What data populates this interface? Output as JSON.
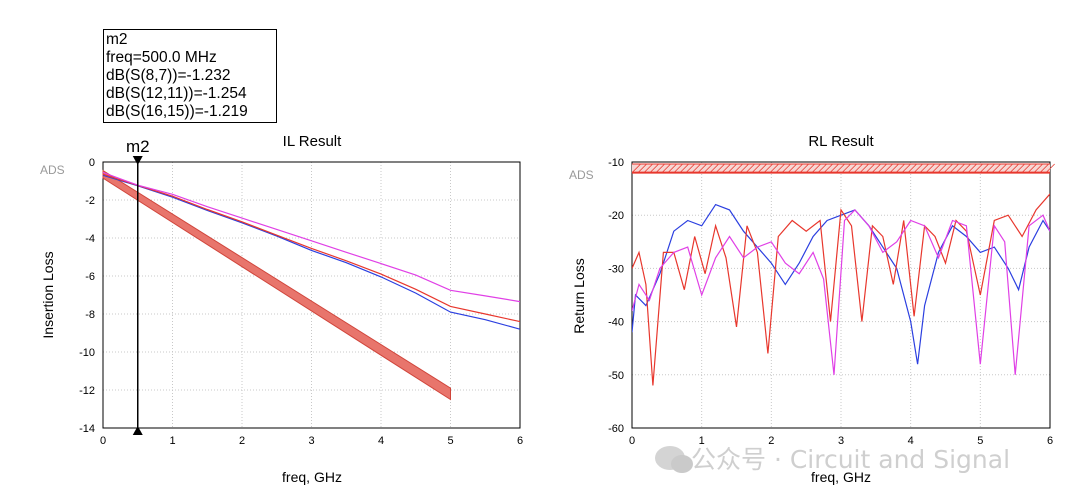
{
  "marker": {
    "name": "m2",
    "lines": [
      "m2",
      "freq=500.0 MHz",
      "dB(S(8,7))=-1.232",
      "dB(S(12,11))=-1.254",
      "dB(S(16,15))=-1.219"
    ]
  },
  "watermark": "公众号 · Circuit and Signal",
  "chart_data": [
    {
      "type": "line",
      "title": "IL Result",
      "corner_label": "ADS",
      "xlabel": "freq, GHz",
      "ylabel": "Insertion Loss",
      "xlim": [
        0,
        6
      ],
      "ylim": [
        -14,
        0
      ],
      "xticks": [
        "0",
        "1",
        "2",
        "3",
        "4",
        "5",
        "6"
      ],
      "yticks": [
        "0",
        "-2",
        "-4",
        "-6",
        "-8",
        "-10",
        "-12",
        "-14"
      ],
      "grid": true,
      "marker": {
        "label": "m2",
        "x": 0.5
      },
      "limit_band": {
        "x": [
          0.0,
          5.0
        ],
        "upper": [
          -0.45,
          -11.9
        ],
        "lower": [
          -0.85,
          -12.5
        ],
        "color": "#e8756c"
      },
      "series": [
        {
          "color": "#2b3fe0",
          "x": [
            0,
            0.5,
            1,
            1.5,
            2,
            2.5,
            3,
            3.5,
            4,
            4.5,
            5,
            5.5,
            6
          ],
          "y": [
            -0.7,
            -1.25,
            -1.85,
            -2.55,
            -3.2,
            -3.9,
            -4.65,
            -5.3,
            -6.05,
            -6.9,
            -7.9,
            -8.3,
            -8.8
          ]
        },
        {
          "color": "#e8372d",
          "x": [
            0,
            0.5,
            1,
            1.5,
            2,
            2.5,
            3,
            3.5,
            4,
            4.5,
            5,
            5.5,
            6
          ],
          "y": [
            -0.65,
            -1.23,
            -1.8,
            -2.5,
            -3.15,
            -3.85,
            -4.55,
            -5.2,
            -5.9,
            -6.7,
            -7.6,
            -8.0,
            -8.4
          ]
        },
        {
          "color": "#e040e6",
          "x": [
            0,
            0.5,
            1,
            1.5,
            2,
            2.5,
            3,
            3.5,
            4,
            4.5,
            5,
            5.5,
            6
          ],
          "y": [
            -0.55,
            -1.22,
            -1.7,
            -2.35,
            -2.95,
            -3.55,
            -4.15,
            -4.75,
            -5.35,
            -5.95,
            -6.75,
            -7.05,
            -7.35
          ]
        }
      ]
    },
    {
      "type": "line",
      "title": "RL Result",
      "corner_label": "ADS",
      "xlabel": "freq, GHz",
      "ylabel": "Return Loss",
      "xlim": [
        0,
        6
      ],
      "ylim": [
        -60,
        -10
      ],
      "xticks": [
        "0",
        "1",
        "2",
        "3",
        "4",
        "5",
        "6"
      ],
      "yticks": [
        "-10",
        "-20",
        "-30",
        "-40",
        "-50",
        "-60"
      ],
      "grid": true,
      "limit_line": {
        "y": -12,
        "x": [
          0,
          6
        ],
        "color": "#e8372d"
      },
      "series": [
        {
          "color": "#2b3fe0",
          "x": [
            0,
            0.05,
            0.2,
            0.4,
            0.6,
            0.8,
            1.0,
            1.2,
            1.4,
            1.6,
            1.8,
            2.0,
            2.2,
            2.4,
            2.6,
            2.8,
            3.0,
            3.2,
            3.4,
            3.6,
            3.8,
            4.0,
            4.1,
            4.2,
            4.4,
            4.6,
            4.8,
            5.0,
            5.2,
            5.4,
            5.55,
            5.7,
            5.9,
            6.0
          ],
          "y": [
            -42,
            -35,
            -37,
            -31,
            -23,
            -21,
            -22,
            -18,
            -19,
            -23,
            -26,
            -29,
            -33,
            -29,
            -24,
            -21,
            -20,
            -19,
            -22,
            -26,
            -30,
            -40,
            -48,
            -37,
            -27,
            -22,
            -24,
            -27,
            -26,
            -30,
            -34,
            -26,
            -21,
            -23
          ]
        },
        {
          "color": "#e8372d",
          "x": [
            0,
            0.1,
            0.2,
            0.3,
            0.45,
            0.6,
            0.75,
            0.9,
            1.05,
            1.2,
            1.35,
            1.5,
            1.65,
            1.8,
            1.95,
            2.1,
            2.3,
            2.5,
            2.7,
            2.85,
            3.0,
            3.15,
            3.3,
            3.45,
            3.6,
            3.75,
            3.9,
            4.05,
            4.2,
            4.35,
            4.5,
            4.65,
            4.8,
            5.0,
            5.2,
            5.4,
            5.6,
            5.8,
            6.0
          ],
          "y": [
            -30,
            -27,
            -33,
            -52,
            -27,
            -27,
            -34,
            -24,
            -31,
            -22,
            -28,
            -41,
            -22,
            -27,
            -46,
            -24,
            -21,
            -23,
            -21,
            -40,
            -19,
            -22,
            -40,
            -22,
            -24,
            -33,
            -21,
            -39,
            -22,
            -24,
            -29,
            -21,
            -23,
            -35,
            -21,
            -20,
            -24,
            -19,
            -16
          ]
        },
        {
          "color": "#e040e6",
          "x": [
            0,
            0.1,
            0.25,
            0.4,
            0.6,
            0.8,
            1.0,
            1.2,
            1.4,
            1.6,
            1.8,
            2.0,
            2.2,
            2.4,
            2.6,
            2.75,
            2.9,
            3.05,
            3.2,
            3.4,
            3.6,
            3.8,
            4.0,
            4.2,
            4.4,
            4.6,
            4.8,
            5.0,
            5.2,
            5.35,
            5.5,
            5.7,
            5.9,
            6.0
          ],
          "y": [
            -38,
            -33,
            -36,
            -30,
            -27,
            -26,
            -35,
            -28,
            -24,
            -28,
            -26,
            -25,
            -29,
            -31,
            -27,
            -32,
            -50,
            -21,
            -19,
            -22,
            -27,
            -25,
            -21,
            -22,
            -28,
            -21,
            -22,
            -48,
            -22,
            -25,
            -50,
            -22,
            -20,
            -23
          ]
        }
      ]
    }
  ]
}
